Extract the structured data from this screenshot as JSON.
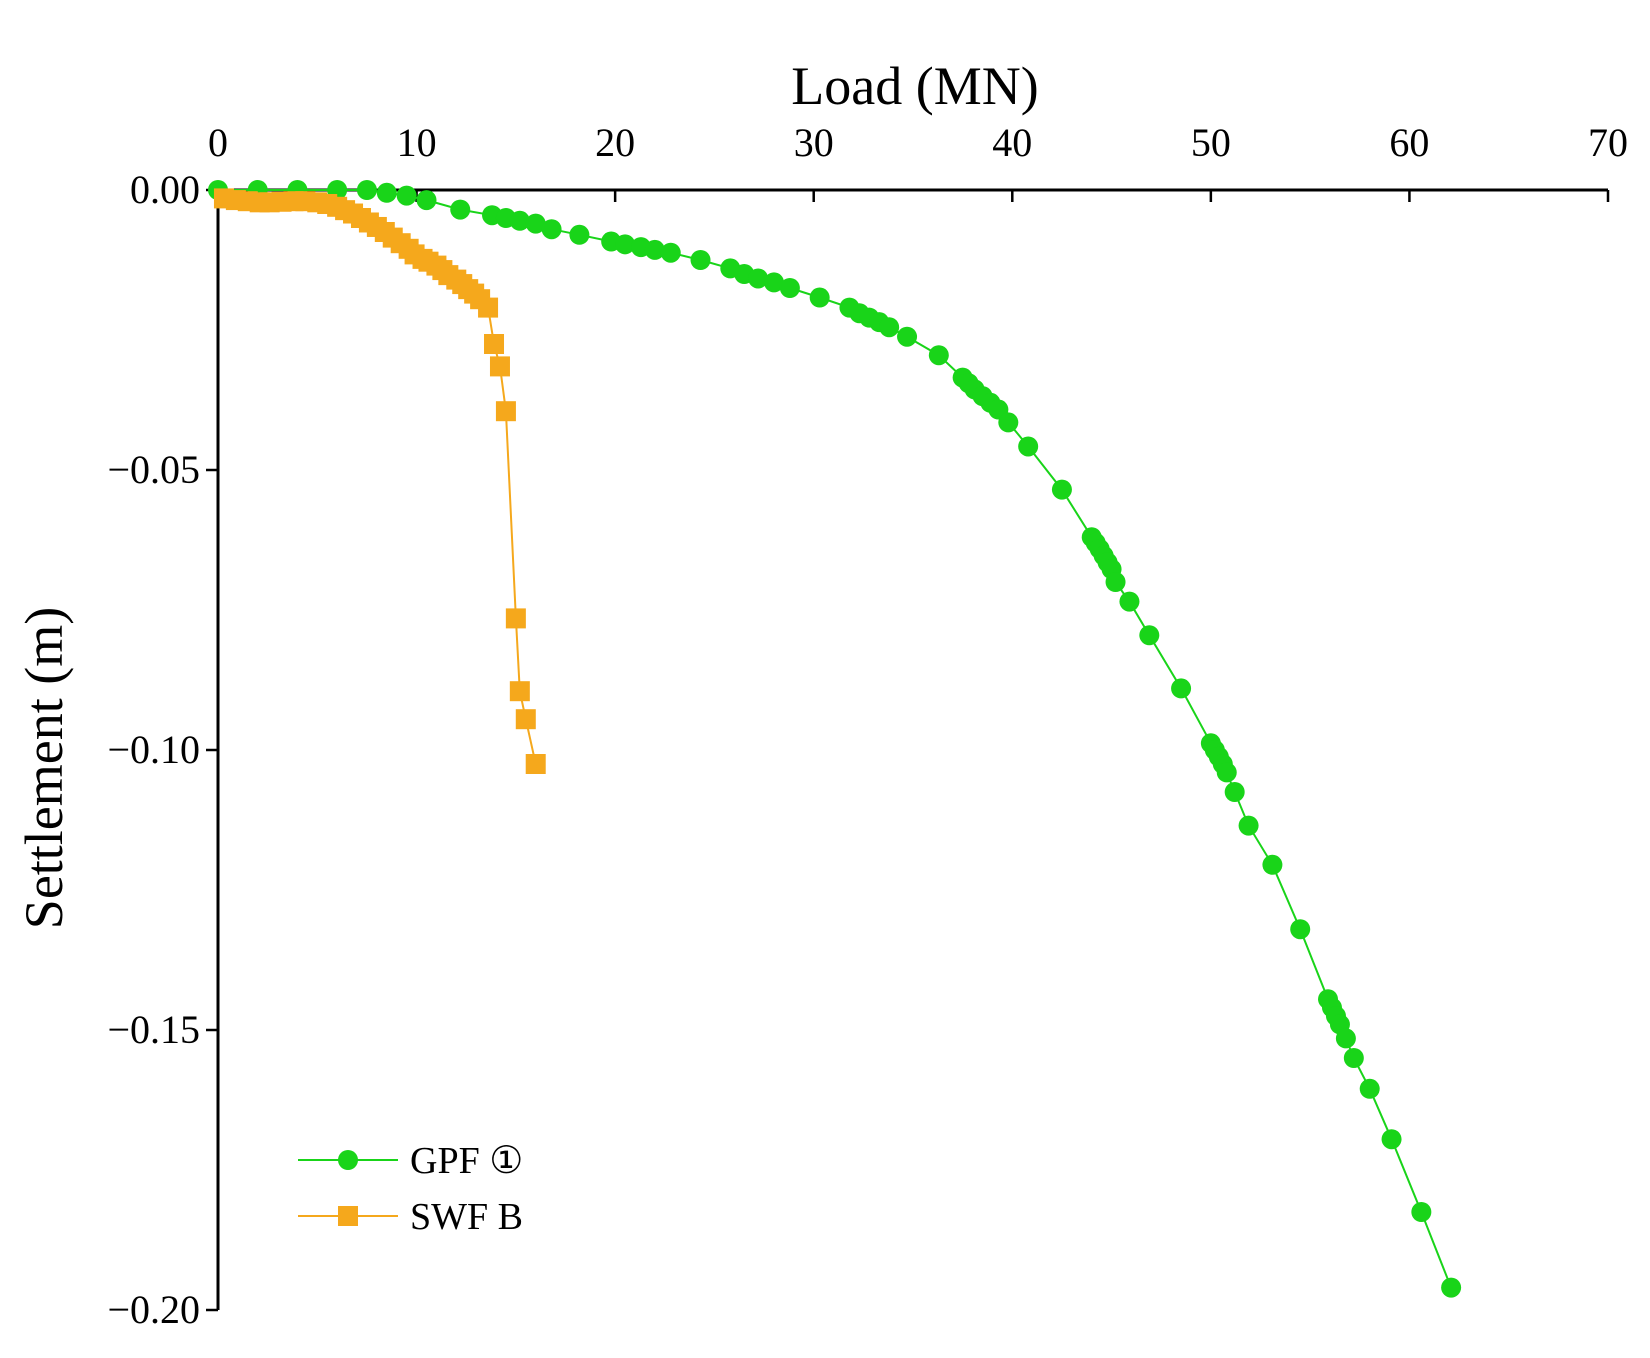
{
  "chart_data": {
    "type": "line",
    "title": "",
    "xlabel": "Load (MN)",
    "ylabel": "Settlement (m)",
    "xlim": [
      0,
      70
    ],
    "ylim": [
      -0.2,
      0.0
    ],
    "xticks": [
      0,
      10,
      20,
      30,
      40,
      50,
      60,
      70
    ],
    "xtick_labels": [
      "0",
      "10",
      "20",
      "30",
      "40",
      "50",
      "60",
      "70"
    ],
    "yticks": [
      0.0,
      -0.05,
      -0.1,
      -0.15,
      -0.2
    ],
    "ytick_labels": [
      "0.00",
      "−0.05",
      "−0.10",
      "−0.15",
      "−0.20"
    ],
    "x_axis_position": "top",
    "grid": false,
    "legend_position": "bottom-left",
    "series": [
      {
        "name": "GPF ①",
        "color": "#19d419",
        "marker": "circle",
        "x": [
          0.0,
          2.0,
          4.0,
          6.0,
          7.5,
          8.5,
          9.5,
          10.5,
          12.2,
          13.8,
          14.5,
          15.2,
          16.0,
          16.8,
          18.2,
          19.8,
          20.5,
          21.3,
          22.0,
          22.8,
          24.3,
          25.8,
          26.5,
          27.2,
          28.0,
          28.8,
          30.3,
          31.8,
          32.3,
          32.8,
          33.3,
          33.8,
          34.7,
          36.3,
          37.5,
          37.8,
          38.1,
          38.5,
          38.9,
          39.3,
          39.8,
          40.8,
          42.5,
          44.0,
          44.2,
          44.4,
          44.6,
          44.8,
          45.0,
          45.2,
          45.9,
          46.9,
          48.5,
          50.0,
          50.2,
          50.4,
          50.6,
          50.8,
          51.2,
          51.9,
          53.1,
          54.5,
          55.9,
          56.1,
          56.3,
          56.5,
          56.8,
          57.2,
          58.0,
          59.1,
          60.6,
          62.1
        ],
        "y": [
          0.0,
          0.0,
          0.0,
          0.0,
          0.0,
          -0.0005,
          -0.001,
          -0.0018,
          -0.0035,
          -0.0045,
          -0.005,
          -0.0055,
          -0.006,
          -0.007,
          -0.008,
          -0.0092,
          -0.0097,
          -0.0102,
          -0.0107,
          -0.0112,
          -0.0125,
          -0.014,
          -0.015,
          -0.0158,
          -0.0165,
          -0.0175,
          -0.0192,
          -0.021,
          -0.022,
          -0.0228,
          -0.0236,
          -0.0245,
          -0.0262,
          -0.0295,
          -0.0335,
          -0.0345,
          -0.0356,
          -0.0368,
          -0.038,
          -0.0392,
          -0.0415,
          -0.0458,
          -0.0535,
          -0.062,
          -0.063,
          -0.0641,
          -0.0653,
          -0.0665,
          -0.0677,
          -0.07,
          -0.0735,
          -0.0795,
          -0.089,
          -0.0988,
          -0.1,
          -0.1012,
          -0.1025,
          -0.104,
          -0.1075,
          -0.1135,
          -0.1205,
          -0.132,
          -0.1445,
          -0.146,
          -0.1475,
          -0.149,
          -0.1515,
          -0.155,
          -0.1605,
          -0.1695,
          -0.1825,
          -0.196
        ]
      },
      {
        "name": "SWF B",
        "color": "#f5a81c",
        "marker": "square",
        "x": [
          0.3,
          0.9,
          1.5,
          2.1,
          2.6,
          3.2,
          3.8,
          4.4,
          5.0,
          5.5,
          6.0,
          6.4,
          6.8,
          7.2,
          7.6,
          8.0,
          8.4,
          8.8,
          9.2,
          9.6,
          9.9,
          10.3,
          10.6,
          11.0,
          11.3,
          11.6,
          12.0,
          12.3,
          12.6,
          12.9,
          13.2,
          13.6,
          13.9,
          14.2,
          14.5,
          15.0,
          15.2,
          15.5,
          16.0
        ],
        "y": [
          -0.0015,
          -0.0018,
          -0.002,
          -0.0022,
          -0.0022,
          -0.0021,
          -0.002,
          -0.002,
          -0.0022,
          -0.0025,
          -0.003,
          -0.0036,
          -0.0042,
          -0.005,
          -0.0058,
          -0.0066,
          -0.0075,
          -0.0085,
          -0.0095,
          -0.0105,
          -0.0115,
          -0.0123,
          -0.0128,
          -0.0135,
          -0.0143,
          -0.0152,
          -0.016,
          -0.0168,
          -0.0177,
          -0.0185,
          -0.0195,
          -0.021,
          -0.0275,
          -0.0315,
          -0.0395,
          -0.0765,
          -0.0895,
          -0.0945,
          -0.1025
        ]
      }
    ]
  }
}
